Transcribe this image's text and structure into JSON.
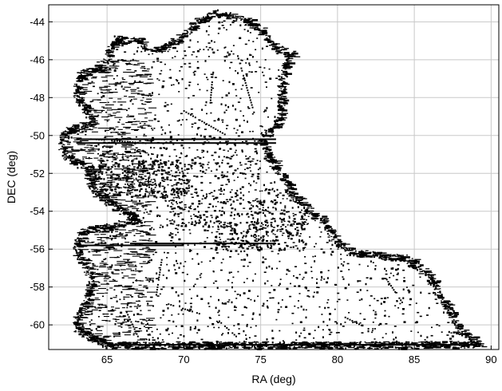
{
  "chart_data": {
    "type": "scatter",
    "title": "",
    "xlabel": "RA (deg)",
    "ylabel": "DEC (deg)",
    "xlim": [
      61.2,
      90.5
    ],
    "ylim": [
      -61.3,
      -43.1
    ],
    "xticks": [
      65,
      70,
      75,
      80,
      85,
      90
    ],
    "yticks": [
      -60,
      -58,
      -56,
      -54,
      -52,
      -50,
      -48,
      -46,
      -44
    ],
    "grid": true,
    "legend": "none",
    "marker_color": "#000000",
    "outline": [
      [
        72.0,
        -43.5
      ],
      [
        74.0,
        -43.9
      ],
      [
        75.2,
        -44.6
      ],
      [
        76.0,
        -45.4
      ],
      [
        77.0,
        -45.7
      ],
      [
        76.5,
        -46.4
      ],
      [
        76.3,
        -47.3
      ],
      [
        76.3,
        -48.3
      ],
      [
        76.0,
        -49.5
      ],
      [
        75.0,
        -50.1
      ],
      [
        75.4,
        -51.0
      ],
      [
        76.3,
        -52.0
      ],
      [
        77.0,
        -53.0
      ],
      [
        78.0,
        -54.0
      ],
      [
        79.2,
        -54.6
      ],
      [
        79.8,
        -55.6
      ],
      [
        81.0,
        -56.2
      ],
      [
        82.5,
        -56.3
      ],
      [
        84.5,
        -56.5
      ],
      [
        85.8,
        -57.3
      ],
      [
        86.5,
        -58.2
      ],
      [
        87.3,
        -59.3
      ],
      [
        87.8,
        -60.2
      ],
      [
        88.5,
        -60.7
      ],
      [
        89.2,
        -61.0
      ],
      [
        84.0,
        -61.05
      ],
      [
        79.0,
        -61.05
      ],
      [
        74.0,
        -61.05
      ],
      [
        69.0,
        -61.05
      ],
      [
        65.0,
        -61.05
      ],
      [
        64.0,
        -60.7
      ],
      [
        63.0,
        -60.2
      ],
      [
        63.0,
        -59.5
      ],
      [
        63.6,
        -58.8
      ],
      [
        63.8,
        -58.2
      ],
      [
        64.0,
        -57.6
      ],
      [
        63.5,
        -56.8
      ],
      [
        63.0,
        -56.2
      ],
      [
        63.0,
        -55.5
      ],
      [
        63.4,
        -55.0
      ],
      [
        64.5,
        -54.9
      ],
      [
        65.8,
        -54.7
      ],
      [
        66.8,
        -54.4
      ],
      [
        65.5,
        -53.7
      ],
      [
        64.5,
        -53.2
      ],
      [
        64.0,
        -52.8
      ],
      [
        63.8,
        -52.2
      ],
      [
        63.5,
        -51.6
      ],
      [
        62.5,
        -51.2
      ],
      [
        62.0,
        -50.6
      ],
      [
        62.2,
        -49.8
      ],
      [
        63.2,
        -49.5
      ],
      [
        64.0,
        -49.3
      ],
      [
        63.6,
        -48.6
      ],
      [
        63.0,
        -48.0
      ],
      [
        63.0,
        -47.3
      ],
      [
        63.3,
        -46.7
      ],
      [
        64.2,
        -46.5
      ],
      [
        65.0,
        -46.0
      ],
      [
        65.2,
        -45.3
      ],
      [
        65.6,
        -44.9
      ],
      [
        67.0,
        -45.0
      ],
      [
        67.8,
        -45.5
      ],
      [
        68.8,
        -45.3
      ],
      [
        70.0,
        -44.6
      ],
      [
        71.0,
        -43.9
      ]
    ],
    "stripes": [
      {
        "x": [
          63.0,
          76.0
        ],
        "y": -50.2
      },
      {
        "x": [
          63.0,
          76.0
        ],
        "y": -50.4
      },
      {
        "x": [
          65.0,
          89.0
        ],
        "y": -61.05
      },
      {
        "x": [
          63.2,
          70.0
        ],
        "y": -55.8
      },
      {
        "x": [
          66.5,
          76.0
        ],
        "y": -55.7
      }
    ],
    "streaks": [
      {
        "x": [
          71.9,
          71.7
        ],
        "y": [
          -46.5,
          -48.4
        ]
      },
      {
        "x": [
          73.5,
          74.6
        ],
        "y": [
          -45.8,
          -48.9
        ]
      },
      {
        "x": [
          68.6,
          68.2
        ],
        "y": [
          -56.3,
          -58.4
        ]
      },
      {
        "x": [
          83.2,
          84.2
        ],
        "y": [
          -57.6,
          -58.8
        ]
      },
      {
        "x": [
          67.0,
          69.5
        ],
        "y": [
          -52.4,
          -53.5
        ]
      },
      {
        "x": [
          70.0,
          72.8
        ],
        "y": [
          -48.7,
          -50.0
        ]
      },
      {
        "x": [
          66.0,
          69.8
        ],
        "y": [
          -51.8,
          -53.1
        ]
      },
      {
        "x": [
          69.0,
          71.0
        ],
        "y": [
          -58.9,
          -59.4
        ]
      },
      {
        "x": [
          72.3,
          73.4
        ],
        "y": [
          -59.8,
          -60.6
        ]
      },
      {
        "x": [
          80.5,
          82.0
        ],
        "y": [
          -59.6,
          -60.2
        ]
      },
      {
        "x": [
          66.2,
          67.0
        ],
        "y": [
          -59.2,
          -60.6
        ]
      },
      {
        "x": [
          64.3,
          67.5
        ],
        "y": [
          -50.2,
          -50.4
        ]
      }
    ]
  }
}
